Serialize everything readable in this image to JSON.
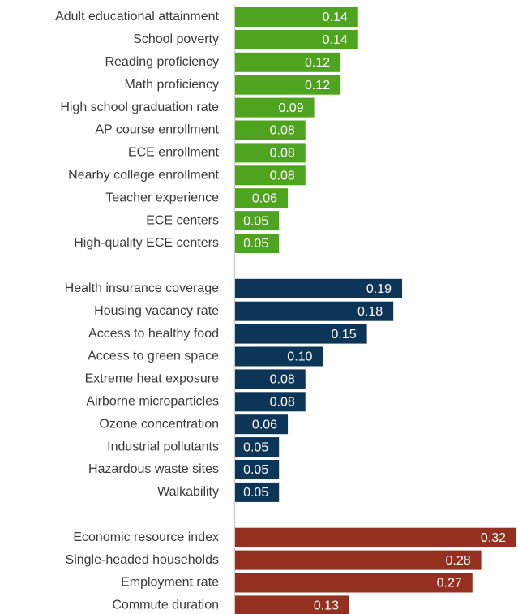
{
  "chart_data": {
    "type": "bar",
    "orientation": "horizontal",
    "categories": [
      "Adult educational attainment",
      "School poverty",
      "Reading proficiency",
      "Math proficiency",
      "High school graduation rate",
      "AP course enrollment",
      "ECE enrollment",
      "Nearby college enrollment",
      "Teacher experience",
      "ECE centers",
      "High-quality ECE centers",
      null,
      "Health insurance coverage",
      "Housing vacancy rate",
      "Access to healthy food",
      "Access to green space",
      "Extreme heat exposure",
      "Airborne microparticles",
      "Ozone concentration",
      "Industrial pollutants",
      "Hazardous waste sites",
      "Walkability",
      null,
      "Economic resource index",
      "Single-headed households",
      "Employment rate",
      "Commute duration"
    ],
    "values": [
      0.14,
      0.14,
      0.12,
      0.12,
      0.09,
      0.08,
      0.08,
      0.08,
      0.06,
      0.05,
      0.05,
      null,
      0.19,
      0.18,
      0.15,
      0.1,
      0.08,
      0.08,
      0.06,
      0.05,
      0.05,
      0.05,
      null,
      0.32,
      0.28,
      0.27,
      0.13
    ],
    "value_labels": [
      "0.14",
      "0.14",
      "0.12",
      "0.12",
      "0.09",
      "0.08",
      "0.08",
      "0.08",
      "0.06",
      "0.05",
      "0.05",
      null,
      "0.19",
      "0.18",
      "0.15",
      "0.10",
      "0.08",
      "0.08",
      "0.06",
      "0.05",
      "0.05",
      "0.05",
      null,
      "0.32",
      "0.28",
      "0.27",
      "0.13"
    ],
    "colors": [
      "#4fa41f",
      "#4fa41f",
      "#4fa41f",
      "#4fa41f",
      "#4fa41f",
      "#4fa41f",
      "#4fa41f",
      "#4fa41f",
      "#4fa41f",
      "#4fa41f",
      "#4fa41f",
      null,
      "#0d3557",
      "#0d3557",
      "#0d3557",
      "#0d3557",
      "#0d3557",
      "#0d3557",
      "#0d3557",
      "#0d3557",
      "#0d3557",
      "#0d3557",
      null,
      "#93301f",
      "#93301f",
      "#93301f",
      "#93301f"
    ],
    "xlim": [
      0,
      0.32
    ]
  }
}
